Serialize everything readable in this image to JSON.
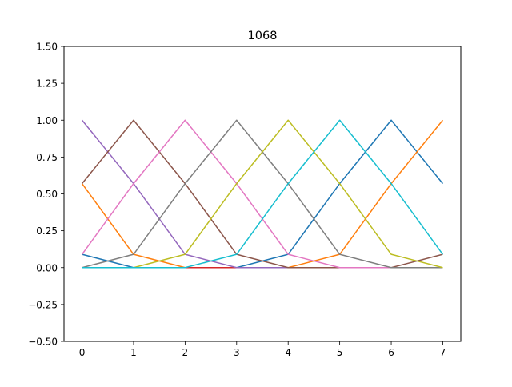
{
  "chart_data": {
    "type": "line",
    "title": "1068",
    "xlabel": "",
    "ylabel": "",
    "xlim": [
      -0.35,
      7.35
    ],
    "ylim": [
      -0.5,
      1.5
    ],
    "x": [
      0,
      1,
      2,
      3,
      4,
      5,
      6,
      7
    ],
    "xticks": [
      "0",
      "1",
      "2",
      "3",
      "4",
      "5",
      "6",
      "7"
    ],
    "yticks": [
      "−0.50",
      "−0.25",
      "0.00",
      "0.25",
      "0.50",
      "0.75",
      "1.00",
      "1.25",
      "1.50"
    ],
    "ytick_values": [
      -0.5,
      -0.25,
      0,
      0.25,
      0.5,
      0.75,
      1.0,
      1.25,
      1.5
    ],
    "grid": false,
    "legend": "none",
    "series": [
      {
        "color": "#1f77b4",
        "values": [
          0.09,
          0.0,
          0.0,
          0.0,
          0.09,
          0.57,
          1.0,
          0.57
        ]
      },
      {
        "color": "#ff7f0e",
        "values": [
          0.57,
          0.09,
          0.0,
          0.0,
          0.0,
          0.09,
          0.57,
          1.0
        ]
      },
      {
        "color": "#2ca02c",
        "values": [
          0.0,
          0.0,
          0.0,
          0.0,
          0.0,
          0.0,
          0.0,
          0.0
        ]
      },
      {
        "color": "#d62728",
        "values": [
          0.0,
          0.0,
          0.0,
          0.0,
          0.0,
          0.0,
          0.0,
          0.0
        ]
      },
      {
        "color": "#9467bd",
        "values": [
          1.0,
          0.57,
          0.09,
          0.0,
          0.0,
          0.0,
          0.0,
          0.0
        ]
      },
      {
        "color": "#8c564b",
        "values": [
          0.57,
          1.0,
          0.57,
          0.09,
          0.0,
          0.0,
          0.0,
          0.09
        ]
      },
      {
        "color": "#e377c2",
        "values": [
          0.09,
          0.57,
          1.0,
          0.57,
          0.09,
          0.0,
          0.0,
          0.0
        ]
      },
      {
        "color": "#7f7f7f",
        "values": [
          0.0,
          0.09,
          0.57,
          1.0,
          0.57,
          0.09,
          0.0,
          0.0
        ]
      },
      {
        "color": "#bcbd22",
        "values": [
          0.0,
          0.0,
          0.09,
          0.57,
          1.0,
          0.57,
          0.09,
          0.0
        ]
      },
      {
        "color": "#17becf",
        "values": [
          0.0,
          0.0,
          0.0,
          0.09,
          0.57,
          1.0,
          0.57,
          0.09
        ]
      }
    ]
  }
}
